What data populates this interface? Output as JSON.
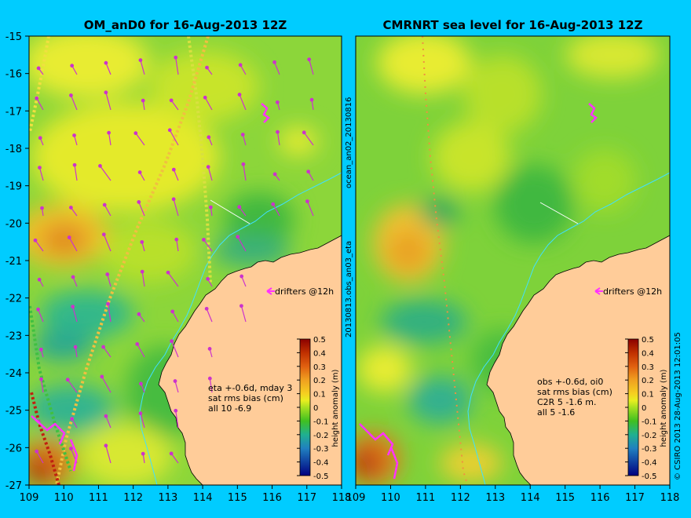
{
  "chart_data": [
    {
      "type": "heatmap",
      "title": "OM_anD0 for 16-Aug-2013 12Z",
      "xlim": [
        109,
        118
      ],
      "ylim": [
        -27,
        -15
      ],
      "x_ticks": [
        "109",
        "110",
        "111",
        "112",
        "113",
        "114",
        "115",
        "116",
        "117",
        "118"
      ],
      "y_ticks": [
        "-15",
        "-16",
        "-17",
        "-18",
        "-19",
        "-20",
        "-21",
        "-22",
        "-23",
        "-24",
        "-25",
        "-26",
        "-27"
      ],
      "drifter_label": "drifters @12h",
      "annotations": [
        "eta +-0.6d, mday 3",
        "sat rms bias (cm)",
        "all 10 -6.9"
      ],
      "vertical_label": "20130813.obs_an03_eta"
    },
    {
      "type": "heatmap",
      "title": "CMRNRT sea level  for 16-Aug-2013 12Z",
      "xlim": [
        109,
        118
      ],
      "ylim": [
        -27,
        -15
      ],
      "x_ticks": [
        "109",
        "110",
        "111",
        "112",
        "113",
        "114",
        "115",
        "116",
        "117",
        "118"
      ],
      "y_ticks": [
        "-15",
        "-16",
        "-17",
        "-18",
        "-19",
        "-20",
        "-21",
        "-22",
        "-23",
        "-24",
        "-25",
        "-26",
        "-27"
      ],
      "drifter_label": "drifters @12h",
      "annotations": [
        "obs +-0.6d, oi0",
        "sat rms bias (cm)",
        "C2R   5 -1.6 m.",
        "all   5 -1.6"
      ],
      "vertical_label": "ocean_an02_20130816"
    }
  ],
  "colorbar": {
    "label": "height anomaly (m)",
    "ticks": [
      "0.5",
      "0.4",
      "0.3",
      "0.2",
      "0.1",
      "0",
      "-0.1",
      "-0.2",
      "-0.3",
      "-0.4",
      "-0.5"
    ],
    "colors": [
      "#8b0000",
      "#c03000",
      "#e06010",
      "#f0a020",
      "#f5d020",
      "#e8ee20",
      "#a8e020",
      "#40c020",
      "#20b090",
      "#2080c0",
      "#1040a0",
      "#000080"
    ]
  },
  "footer": "CSIRO 2013   28-Aug-2013 12:01:05",
  "colors": {
    "land": "#ffcc99",
    "ocean_base": "#90d830",
    "background": "#00ccff",
    "arrow": "#cc33cc"
  }
}
